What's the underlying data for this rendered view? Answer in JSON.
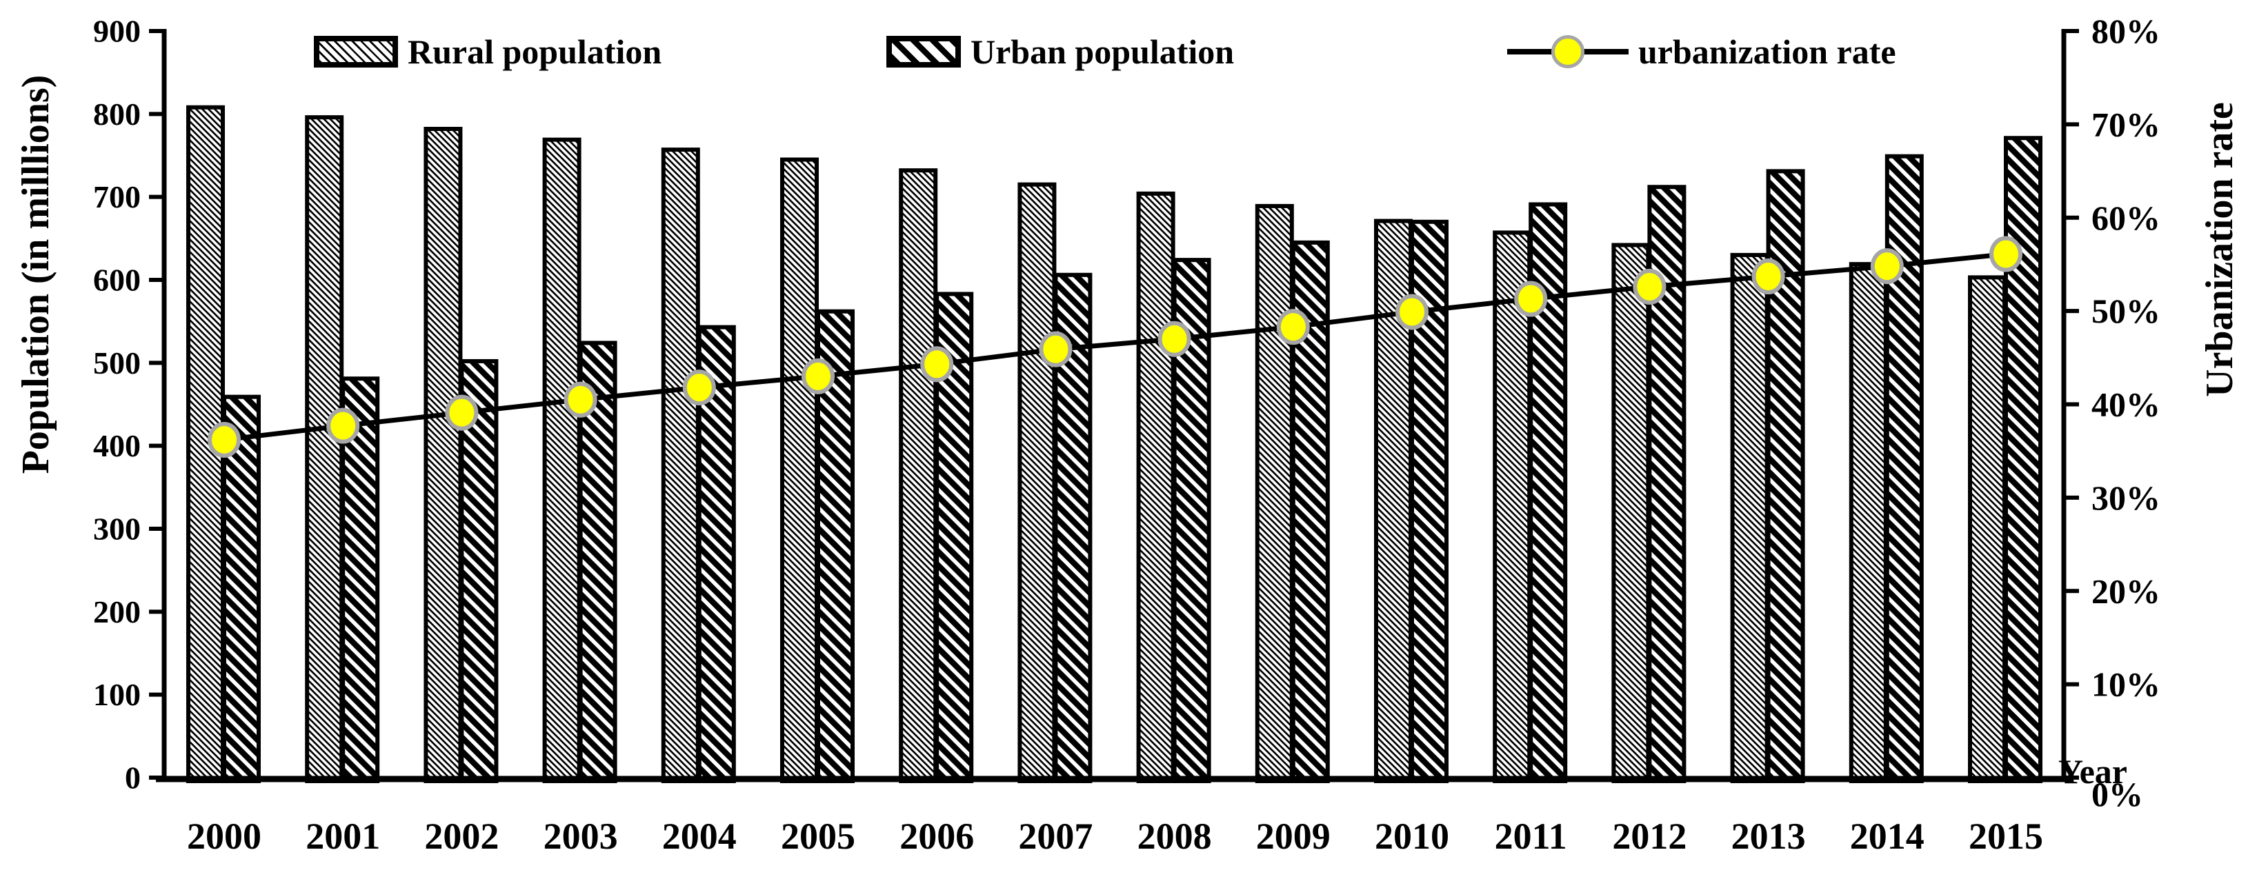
{
  "chart_data": {
    "type": "bar",
    "subtype": "grouped-bars-with-line-overlay",
    "categories": [
      "2000",
      "2001",
      "2002",
      "2003",
      "2004",
      "2005",
      "2006",
      "2007",
      "2008",
      "2009",
      "2010",
      "2011",
      "2012",
      "2013",
      "2014",
      "2015"
    ],
    "series": [
      {
        "name": "Rural population",
        "type": "bar",
        "axis": "left",
        "values": [
          808,
          796,
          782,
          769,
          757,
          745,
          732,
          715,
          704,
          689,
          671,
          657,
          642,
          630,
          619,
          603
        ]
      },
      {
        "name": "Urban population",
        "type": "bar",
        "axis": "left",
        "values": [
          459,
          481,
          502,
          524,
          543,
          562,
          583,
          606,
          624,
          645,
          670,
          691,
          712,
          731,
          749,
          771
        ]
      },
      {
        "name": "urbanization rate",
        "type": "line",
        "axis": "right",
        "values": [
          36.2,
          37.7,
          39.1,
          40.5,
          41.8,
          43.0,
          44.3,
          45.9,
          47.0,
          48.3,
          49.9,
          51.3,
          52.6,
          53.7,
          54.8,
          56.1
        ]
      }
    ],
    "left_axis": {
      "title": "Population (in milllions)",
      "min": 0,
      "max": 900,
      "step": 100,
      "tick_labels": [
        "900",
        "800",
        "700",
        "600",
        "500",
        "400",
        "300",
        "200",
        "100",
        "0"
      ]
    },
    "right_axis": {
      "title": "Urbanization rate",
      "min": 0,
      "max": 80,
      "step": 10,
      "tick_labels": [
        "80%",
        "70%",
        "60%",
        "50%",
        "40%",
        "30%",
        "20%",
        "10%",
        "0%"
      ]
    },
    "x_axis": {
      "title": "Year"
    },
    "legend_position": "top",
    "grid": "off",
    "styles": {
      "background": "#FFFFFF",
      "bar_outline": "#000000",
      "line_color": "#000000",
      "marker_fill": "#FFFF00",
      "marker_stroke": "#A6A6A6",
      "text_color": "#000000"
    }
  }
}
